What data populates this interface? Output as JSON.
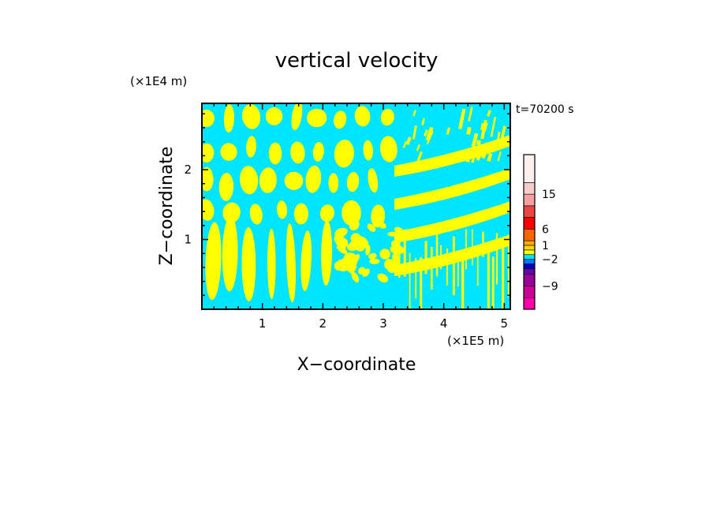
{
  "chart_data": {
    "type": "heatmap",
    "title": "vertical velocity",
    "xlabel": "X−coordinate",
    "ylabel": "Z−coordinate",
    "x_scale_label": "(×1E5 m)",
    "y_scale_label": "(×1E4 m)",
    "time_label": "t=70200 s",
    "xlim": [
      0,
      5.1
    ],
    "ylim": [
      0,
      2.95
    ],
    "x_ticks": [
      1,
      2,
      3,
      4,
      5
    ],
    "x_tick_labels": [
      "1",
      "2",
      "3",
      "4",
      "5"
    ],
    "y_ticks": [
      1,
      2
    ],
    "y_tick_labels": [
      "1",
      "2"
    ],
    "colorbar": {
      "levels": [
        {
          "color": "#ff00aa"
        },
        {
          "color": "#cc0099"
        },
        {
          "color": "#990099"
        },
        {
          "color": "#6600aa"
        },
        {
          "color": "#0000cc"
        },
        {
          "color": "#0077ff"
        },
        {
          "color": "#00e5ff"
        },
        {
          "color": "#ffff00"
        },
        {
          "color": "#ffd400"
        },
        {
          "color": "#ffaa00"
        },
        {
          "color": "#ff6600"
        },
        {
          "color": "#ff0000"
        },
        {
          "color": "#ee4444"
        },
        {
          "color": "#f4a0a0"
        },
        {
          "color": "#f9cccc"
        },
        {
          "color": "#fff0f0"
        }
      ],
      "labels": [
        {
          "text": "15",
          "level_index": 13
        },
        {
          "text": "6",
          "level_index": 10
        },
        {
          "text": "1",
          "level_index": 8
        },
        {
          "text": "−2",
          "level_index": 5
        },
        {
          "text": "−9",
          "level_index": 1
        }
      ]
    },
    "field_colors": {
      "positive": "#ffff00",
      "negative": "#00e5ff"
    }
  }
}
